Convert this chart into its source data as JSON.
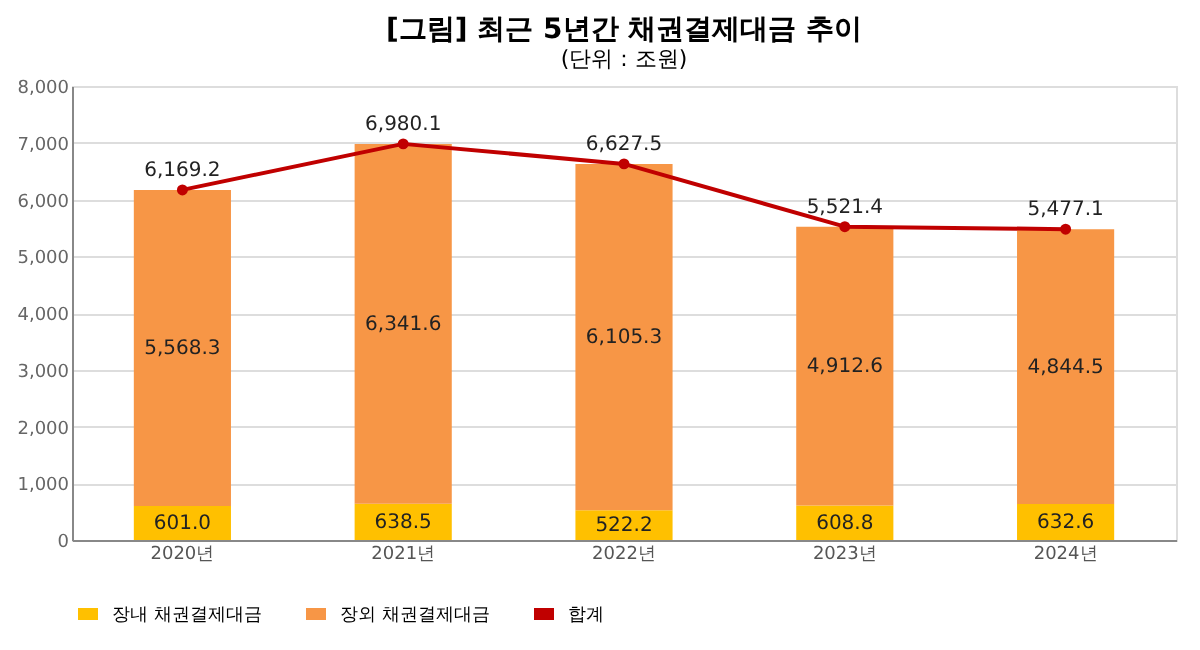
{
  "chart_data": {
    "type": "bar",
    "stacked": true,
    "title": "[그림] 최근 5년간 채권결제대금 추이",
    "subtitle": "(단위 : 조원)",
    "categories": [
      "2020년",
      "2021년",
      "2022년",
      "2023년",
      "2024년"
    ],
    "series": [
      {
        "name": "장내 채권결제대금",
        "color": "#ffc000",
        "values": [
          601.0,
          638.5,
          522.2,
          608.8,
          632.6
        ],
        "value_labels": [
          "601.0",
          "638.5",
          "522.2",
          "608.8",
          "632.6"
        ]
      },
      {
        "name": "장외 채권결제대금",
        "color": "#f79646",
        "values": [
          5568.3,
          6341.6,
          6105.3,
          4912.6,
          4844.5
        ],
        "value_labels": [
          "5,568.3",
          "6,341.6",
          "6,105.3",
          "4,912.6",
          "4,844.5"
        ]
      },
      {
        "name": "합계",
        "type": "line",
        "color": "#c00000",
        "marker": "circle",
        "values": [
          6169.2,
          6980.1,
          6627.5,
          5521.4,
          5477.1
        ],
        "value_labels": [
          "6,169.2",
          "6,980.1",
          "6,627.5",
          "5,521.4",
          "5,477.1"
        ]
      }
    ],
    "ylim": [
      0,
      8000
    ],
    "yticks": [
      0,
      {
        "value": 1000,
        "label": "1,000"
      },
      {
        "value": 2000,
        "label": "2,000"
      },
      {
        "value": 3000,
        "label": "3,000"
      },
      {
        "value": 4000,
        "label": "4,000"
      },
      {
        "value": 5000,
        "label": "5,000"
      },
      {
        "value": 6000,
        "label": "6,000"
      },
      {
        "value": 7000,
        "label": "7,000"
      },
      {
        "value": 8000,
        "label": "8,000"
      }
    ],
    "grid": "y",
    "legend": "bottom"
  }
}
